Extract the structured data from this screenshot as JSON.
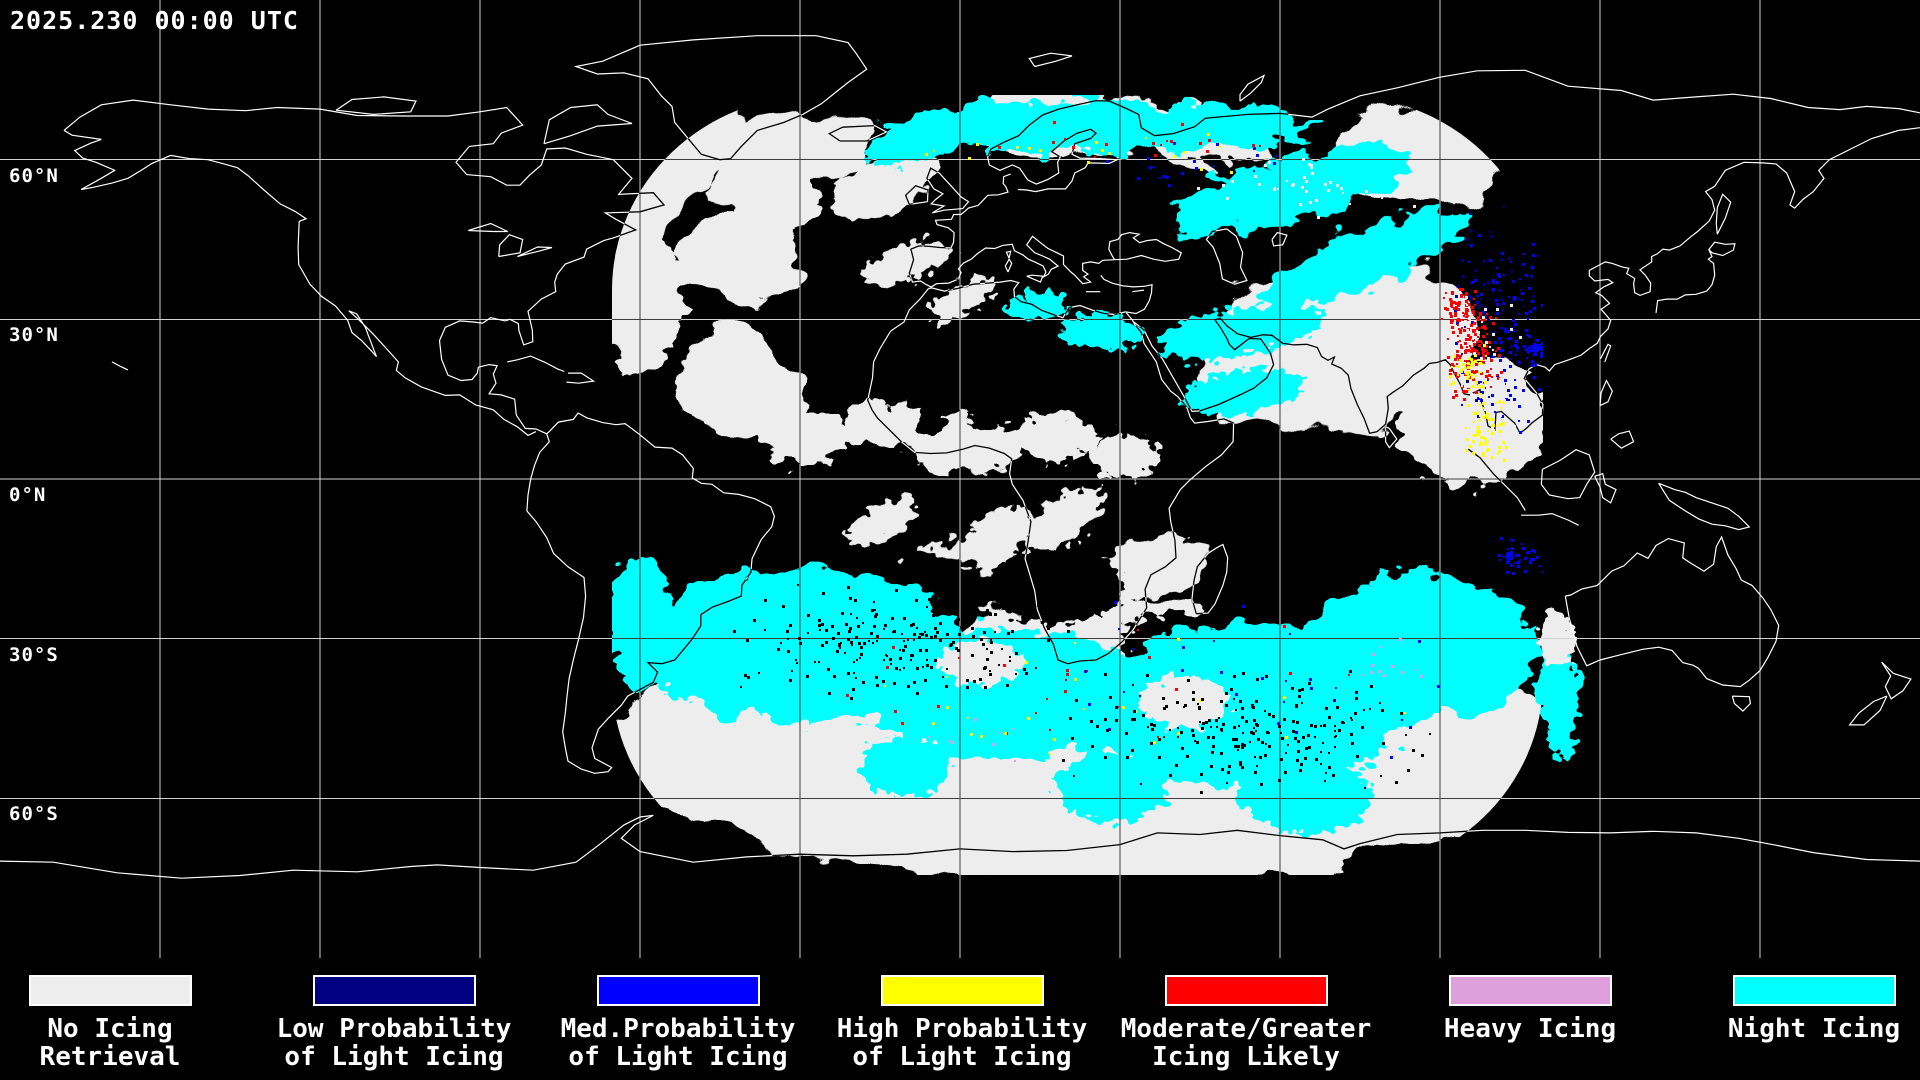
{
  "timestamp": "2025.230 00:00 UTC",
  "map": {
    "projection": "equirectangular",
    "grid_interval_deg": 30,
    "latitude_labels": [
      {
        "text": "60°N",
        "lat": 60
      },
      {
        "text": "30°N",
        "lat": 30
      },
      {
        "text": "0°N",
        "lat": 0
      },
      {
        "text": "30°S",
        "lat": -30
      },
      {
        "text": "60°S",
        "lat": -60
      }
    ]
  },
  "legend": {
    "items": [
      {
        "name": "no-icing-retrieval",
        "key": "no",
        "label_lines": [
          "No Icing",
          "Retrieval"
        ],
        "color": "#ededed"
      },
      {
        "name": "low-prob-light-icing",
        "key": "low",
        "label_lines": [
          "Low Probability",
          "of Light Icing"
        ],
        "color": "#000080"
      },
      {
        "name": "med-prob-light-icing",
        "key": "med",
        "label_lines": [
          "Med.Probability",
          "of Light Icing"
        ],
        "color": "#0000ff"
      },
      {
        "name": "high-prob-light-icing",
        "key": "high",
        "label_lines": [
          "High Probability",
          "of Light Icing"
        ],
        "color": "#ffff00"
      },
      {
        "name": "moderate-greater-icing",
        "key": "mod",
        "label_lines": [
          "Moderate/Greater",
          "Icing Likely"
        ],
        "color": "#ff0000"
      },
      {
        "name": "heavy-icing",
        "key": "heavy",
        "label_lines": [
          "Heavy Icing"
        ],
        "color": "#dda0dd"
      },
      {
        "name": "night-icing",
        "key": "night",
        "label_lines": [
          "Night Icing"
        ],
        "color": "#00ffff"
      }
    ]
  }
}
